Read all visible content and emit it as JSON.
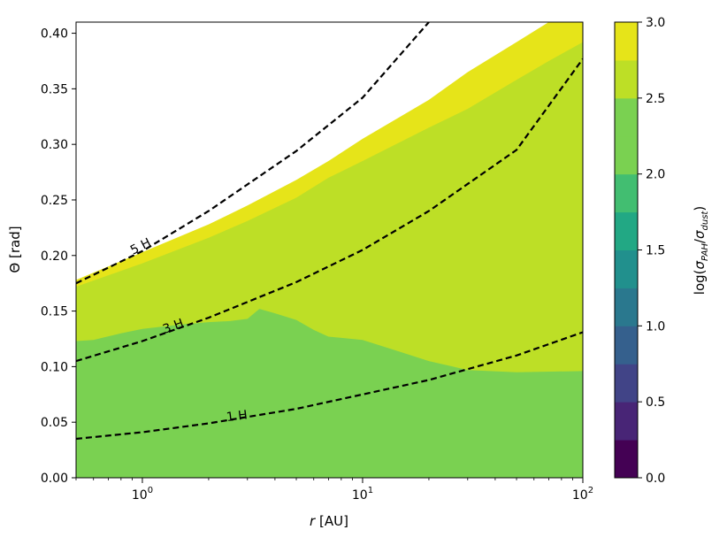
{
  "chart_data": {
    "type": "contourf",
    "x": {
      "label": "r [AU]",
      "scale": "log",
      "range": [
        0.5,
        100
      ],
      "ticks": [
        {
          "value": 1,
          "base": "10",
          "exp": "0"
        },
        {
          "value": 10,
          "base": "10",
          "exp": "1"
        },
        {
          "value": 100,
          "base": "10",
          "exp": "2"
        }
      ]
    },
    "y": {
      "label": "Θ [rad]",
      "range": [
        0.0,
        0.41
      ],
      "ticks": [
        "0.00",
        "0.05",
        "0.10",
        "0.15",
        "0.20",
        "0.25",
        "0.30",
        "0.35",
        "0.40"
      ]
    },
    "colorbar": {
      "label": "log(σ_PAH/σ_dust)",
      "range": [
        0.0,
        3.0
      ],
      "ticks": [
        "0.0",
        "0.5",
        "1.0",
        "1.5",
        "2.0",
        "2.5",
        "3.0"
      ],
      "levels": [
        {
          "from": 0.0,
          "to": 0.25,
          "color": "#440154"
        },
        {
          "from": 0.25,
          "to": 0.5,
          "color": "#482576"
        },
        {
          "from": 0.5,
          "to": 0.75,
          "color": "#414487"
        },
        {
          "from": 0.75,
          "to": 1.0,
          "color": "#35608d"
        },
        {
          "from": 1.0,
          "to": 1.25,
          "color": "#2a788e"
        },
        {
          "from": 1.25,
          "to": 1.5,
          "color": "#21908d"
        },
        {
          "from": 1.5,
          "to": 1.75,
          "color": "#22a884"
        },
        {
          "from": 1.75,
          "to": 2.0,
          "color": "#42be71"
        },
        {
          "from": 2.0,
          "to": 2.25,
          "color": "#7ad151"
        },
        {
          "from": 2.25,
          "to": 2.5,
          "color": "#7ad151"
        },
        {
          "from": 2.5,
          "to": 2.75,
          "color": "#bddf26"
        },
        {
          "from": 2.75,
          "to": 3.0,
          "color": "#e6e419"
        }
      ]
    },
    "regions": [
      {
        "level": "2.0–2.5",
        "color": "#7ad151",
        "boundary": [
          [
            0.5,
            0.123
          ],
          [
            0.6,
            0.124
          ],
          [
            0.8,
            0.13
          ],
          [
            1.0,
            0.134
          ],
          [
            1.5,
            0.138
          ],
          [
            2.0,
            0.14
          ],
          [
            2.5,
            0.141
          ],
          [
            3.0,
            0.143
          ],
          [
            3.4,
            0.152
          ],
          [
            4.0,
            0.148
          ],
          [
            5.0,
            0.142
          ],
          [
            6.0,
            0.133
          ],
          [
            7.0,
            0.127
          ],
          [
            10.0,
            0.124
          ],
          [
            15.0,
            0.113
          ],
          [
            20.0,
            0.105
          ],
          [
            30.0,
            0.097
          ],
          [
            50.0,
            0.095
          ],
          [
            100.0,
            0.096
          ]
        ]
      },
      {
        "level": "2.5–2.75",
        "color": "#bddf26",
        "boundary": [
          [
            0.5,
            0.172
          ],
          [
            1.0,
            0.193
          ],
          [
            2.0,
            0.216
          ],
          [
            3.0,
            0.231
          ],
          [
            5.0,
            0.252
          ],
          [
            7.0,
            0.27
          ],
          [
            10.0,
            0.285
          ],
          [
            20.0,
            0.315
          ],
          [
            30.0,
            0.332
          ],
          [
            50.0,
            0.358
          ],
          [
            70.0,
            0.375
          ],
          [
            100.0,
            0.392
          ]
        ]
      },
      {
        "level": "2.75–3.0",
        "color": "#e6e419",
        "boundary": [
          [
            0.5,
            0.178
          ],
          [
            1.0,
            0.203
          ],
          [
            2.0,
            0.228
          ],
          [
            3.0,
            0.245
          ],
          [
            5.0,
            0.268
          ],
          [
            7.0,
            0.285
          ],
          [
            10.0,
            0.305
          ],
          [
            20.0,
            0.34
          ],
          [
            30.0,
            0.365
          ],
          [
            50.0,
            0.392
          ],
          [
            70.0,
            0.41
          ],
          [
            100.0,
            0.43
          ]
        ]
      }
    ],
    "lines": [
      {
        "label": "1 H",
        "points": [
          [
            0.5,
            0.035
          ],
          [
            1,
            0.041
          ],
          [
            2,
            0.049
          ],
          [
            5,
            0.062
          ],
          [
            10,
            0.075
          ],
          [
            20,
            0.088
          ],
          [
            50,
            0.11
          ],
          [
            100,
            0.131
          ]
        ],
        "label_at": [
          2.7,
          0.052
        ],
        "label_angle": -7
      },
      {
        "label": "3 H",
        "points": [
          [
            0.5,
            0.105
          ],
          [
            1,
            0.123
          ],
          [
            2,
            0.144
          ],
          [
            5,
            0.176
          ],
          [
            10,
            0.205
          ],
          [
            20,
            0.24
          ],
          [
            50,
            0.295
          ],
          [
            100,
            0.377
          ]
        ],
        "label_at": [
          1.4,
          0.133
        ],
        "label_angle": -20
      },
      {
        "label": "5 H",
        "points": [
          [
            0.5,
            0.175
          ],
          [
            1,
            0.204
          ],
          [
            2,
            0.24
          ],
          [
            5,
            0.294
          ],
          [
            10,
            0.342
          ],
          [
            20,
            0.41
          ]
        ],
        "label_at": [
          1.0,
          0.205
        ],
        "label_angle": -27
      }
    ]
  }
}
